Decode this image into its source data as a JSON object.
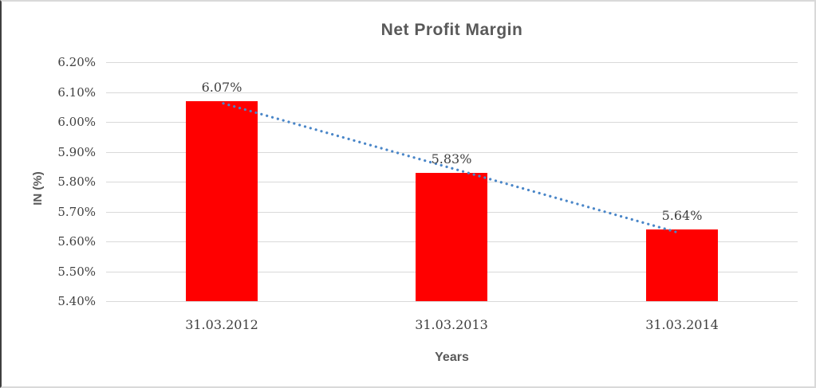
{
  "chart_data": {
    "type": "bar",
    "title": "Net Profit Margin",
    "xlabel": "Years",
    "ylabel": "IN (%)",
    "categories": [
      "31.03.2012",
      "31.03.2013",
      "31.03.2014"
    ],
    "values": [
      6.07,
      5.83,
      5.64
    ],
    "data_labels": [
      "6.07%",
      "5.83%",
      "5.64%"
    ],
    "ylim": [
      5.4,
      6.2
    ],
    "ytick_step": 0.1,
    "ytick_labels": [
      "6.20%",
      "6.10%",
      "6.00%",
      "5.90%",
      "5.80%",
      "5.70%",
      "5.60%",
      "5.50%",
      "5.40%"
    ],
    "grid": "on",
    "legend": "none",
    "trendline": {
      "type": "linear",
      "style": "dotted",
      "color": "#4a86c8"
    },
    "colors": {
      "bar_fill": "#ff0000",
      "gridline": "#d9d9d9",
      "title_text": "#595959",
      "axis_tick_text": "#3f3f3f",
      "axis_title_text": "#595959",
      "background": "#ffffff"
    }
  }
}
